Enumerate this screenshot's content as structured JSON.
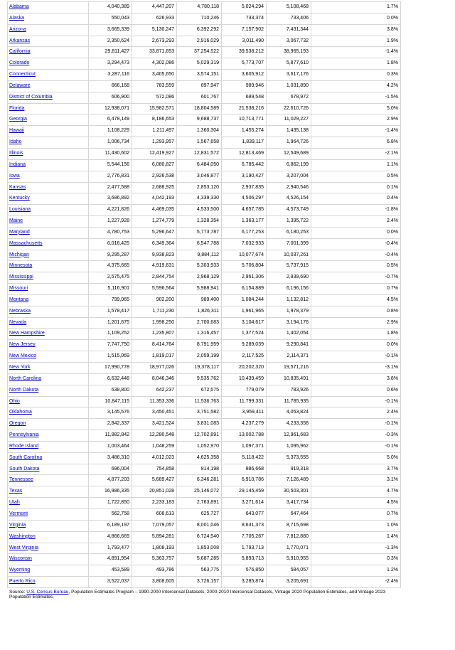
{
  "rows": [
    [
      "Alabama",
      "4,040,389",
      "4,447,207",
      "4,780,118",
      "5,024,294",
      "5,108,468",
      "1.7%"
    ],
    [
      "Alaska",
      "550,043",
      "626,933",
      "710,246",
      "733,374",
      "733,406",
      "0.0%"
    ],
    [
      "Arizona",
      "3,665,339",
      "5,130,247",
      "6,392,292",
      "7,157,902",
      "7,431,344",
      "3.8%"
    ],
    [
      "Arkansas",
      "2,350,624",
      "2,673,293",
      "2,916,029",
      "3,011,490",
      "3,067,732",
      "1.9%"
    ],
    [
      "California",
      "29,811,427",
      "33,871,653",
      "37,254,522",
      "39,538,212",
      "38,965,193",
      "-1.4%"
    ],
    [
      "Colorado",
      "3,294,473",
      "4,302,086",
      "5,029,319",
      "5,773,707",
      "5,877,610",
      "1.8%"
    ],
    [
      "Connecticut",
      "3,287,116",
      "3,405,650",
      "3,574,151",
      "3,605,912",
      "3,617,176",
      "0.3%"
    ],
    [
      "Delaware",
      "666,168",
      "783,559",
      "897,947",
      "989,946",
      "1,031,890",
      "4.2%"
    ],
    [
      "District of Columbia",
      "606,900",
      "572,086",
      "601,767",
      "689,548",
      "678,972",
      "-1.5%"
    ],
    [
      "Florida",
      "12,938,071",
      "15,982,571",
      "18,804,589",
      "21,538,216",
      "22,610,726",
      "5.0%"
    ],
    [
      "Georgia",
      "6,478,149",
      "8,186,653",
      "9,688,737",
      "10,713,771",
      "11,029,227",
      "2.9%"
    ],
    [
      "Hawaii",
      "1,108,229",
      "1,211,497",
      "1,360,304",
      "1,455,274",
      "1,435,138",
      "-1.4%"
    ],
    [
      "Idaho",
      "1,006,734",
      "1,293,957",
      "1,567,658",
      "1,839,117",
      "1,964,726",
      "6.8%"
    ],
    [
      "Illinois",
      "11,430,602",
      "12,419,927",
      "12,831,572",
      "12,813,469",
      "12,549,689",
      "-2.1%"
    ],
    [
      "Indiana",
      "5,544,156",
      "6,080,827",
      "6,484,050",
      "6,785,442",
      "6,862,199",
      "1.1%"
    ],
    [
      "Iowa",
      "2,776,831",
      "2,926,538",
      "3,046,877",
      "3,190,427",
      "3,207,004",
      "0.5%"
    ],
    [
      "Kansas",
      "2,477,588",
      "2,688,925",
      "2,853,120",
      "2,937,835",
      "2,940,546",
      "0.1%"
    ],
    [
      "Kentucky",
      "3,686,892",
      "4,042,193",
      "4,339,330",
      "4,506,297",
      "4,526,154",
      "0.4%"
    ],
    [
      "Louisiana",
      "4,221,826",
      "4,469,035",
      "4,533,500",
      "4,657,785",
      "4,573,749",
      "-1.8%"
    ],
    [
      "Maine",
      "1,227,928",
      "1,274,779",
      "1,328,354",
      "1,363,177",
      "1,395,722",
      "2.4%"
    ],
    [
      "Maryland",
      "4,780,753",
      "5,296,647",
      "5,773,787",
      "6,177,253",
      "6,180,253",
      "0.0%"
    ],
    [
      "Massachusetts",
      "6,016,425",
      "6,349,364",
      "6,547,788",
      "7,032,933",
      "7,001,399",
      "-0.4%"
    ],
    [
      "Michigan",
      "9,295,287",
      "9,938,823",
      "9,884,112",
      "10,077,674",
      "10,037,261",
      "-0.4%"
    ],
    [
      "Minnesota",
      "4,375,665",
      "4,919,631",
      "5,303,933",
      "5,706,804",
      "5,737,915",
      "0.5%"
    ],
    [
      "Mississippi",
      "2,575,475",
      "2,844,754",
      "2,968,129",
      "2,961,306",
      "2,939,690",
      "-0.7%"
    ],
    [
      "Missouri",
      "5,116,901",
      "5,596,564",
      "5,988,941",
      "6,154,889",
      "6,196,156",
      "0.7%"
    ],
    [
      "Montana",
      "799,065",
      "902,200",
      "989,400",
      "1,084,244",
      "1,132,812",
      "4.5%"
    ],
    [
      "Nebraska",
      "1,578,417",
      "1,711,230",
      "1,826,311",
      "1,961,965",
      "1,978,379",
      "0.8%"
    ],
    [
      "Nevada",
      "1,201,675",
      "1,998,250",
      "2,700,683",
      "3,104,617",
      "3,194,176",
      "2.9%"
    ],
    [
      "New Hampshire",
      "1,109,252",
      "1,235,807",
      "1,316,457",
      "1,377,524",
      "1,402,054",
      "1.8%"
    ],
    [
      "New Jersey",
      "7,747,750",
      "8,414,764",
      "8,791,959",
      "9,289,039",
      "9,290,841",
      "0.0%"
    ],
    [
      "New Mexico",
      "1,515,069",
      "1,819,017",
      "2,059,199",
      "2,117,525",
      "2,114,371",
      "-0.1%"
    ],
    [
      "New York",
      "17,990,778",
      "18,977,026",
      "19,378,117",
      "20,202,320",
      "19,571,216",
      "-3.1%"
    ],
    [
      "North Carolina",
      "6,632,448",
      "8,046,346",
      "9,535,762",
      "10,439,459",
      "10,835,491",
      "3.8%"
    ],
    [
      "North Dakota",
      "638,800",
      "642,237",
      "672,575",
      "779,079",
      "783,926",
      "0.6%"
    ],
    [
      "Ohio",
      "10,847,115",
      "11,353,336",
      "11,536,763",
      "11,799,331",
      "11,785,935",
      "-0.1%"
    ],
    [
      "Oklahoma",
      "3,145,576",
      "3,450,451",
      "3,751,582",
      "3,959,411",
      "4,053,824",
      "2.4%"
    ],
    [
      "Oregon",
      "2,842,337",
      "3,421,524",
      "3,831,083",
      "4,237,279",
      "4,233,358",
      "-0.1%"
    ],
    [
      "Pennsylvania",
      "11,882,842",
      "12,280,548",
      "12,702,891",
      "13,002,788",
      "12,961,683",
      "-0.3%"
    ],
    [
      "Rhode Island",
      "1,003,464",
      "1,048,259",
      "1,052,970",
      "1,097,371",
      "1,095,962",
      "-0.1%"
    ],
    [
      "South Carolina",
      "3,486,310",
      "4,012,023",
      "4,625,358",
      "5,118,422",
      "5,373,555",
      "5.0%"
    ],
    [
      "South Dakota",
      "696,004",
      "754,858",
      "814,198",
      "886,668",
      "919,318",
      "3.7%"
    ],
    [
      "Tennessee",
      "4,877,203",
      "5,689,427",
      "6,346,281",
      "6,910,786",
      "7,126,489",
      "3.1%"
    ],
    [
      "Texas",
      "16,986,335",
      "20,851,028",
      "25,146,072",
      "29,145,459",
      "30,503,301",
      "4.7%"
    ],
    [
      "Utah",
      "1,722,850",
      "2,233,183",
      "2,763,891",
      "3,271,614",
      "3,417,734",
      "4.5%"
    ],
    [
      "Vermont",
      "562,758",
      "608,613",
      "625,727",
      "643,077",
      "647,464",
      "0.7%"
    ],
    [
      "Virginia",
      "6,189,197",
      "7,079,057",
      "8,001,046",
      "8,631,373",
      "8,715,698",
      "1.0%"
    ],
    [
      "Washington",
      "4,866,669",
      "5,894,281",
      "6,724,540",
      "7,705,267",
      "7,812,880",
      "1.4%"
    ],
    [
      "West Virginia",
      "1,793,477",
      "1,808,193",
      "1,853,008",
      "1,793,713",
      "1,770,071",
      "-1.3%"
    ],
    [
      "Wisconsin",
      "4,891,954",
      "5,363,757",
      "5,687,285",
      "5,893,713",
      "5,910,955",
      "0.3%"
    ],
    [
      "Wyoming",
      "453,589",
      "493,786",
      "563,775",
      "576,850",
      "584,057",
      "1.2%"
    ],
    [
      "Puerto Rico",
      "3,522,037",
      "3,808,605",
      "3,726,157",
      "3,285,874",
      "3,205,691",
      "-2.4%"
    ]
  ],
  "source": {
    "prefix": "Source: ",
    "link": "U.S. Census Bureau",
    "suffix": ", Population Estimates Program – 1990-2000 Intercensal Datasets, 2000-2010 Intercensal Datasets, Vintage 2020 Population Estimates, and Vintage 2023 Population Estimates."
  }
}
